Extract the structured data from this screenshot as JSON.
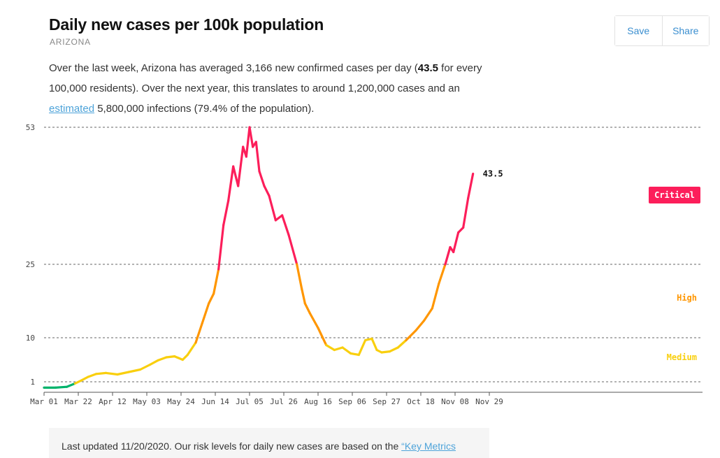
{
  "header": {
    "title": "Daily new cases per 100k population",
    "subtitle": "ARIZONA"
  },
  "summary": {
    "part1": "Over the last week, Arizona has averaged 3,166 new confirmed cases per day (",
    "bold_value": "43.5",
    "part2": " for every 100,000 residents). Over the next year, this translates to around 1,200,000 cases and an ",
    "link_text": "estimated",
    "part3": " 5,800,000 infections (79.4% of the population)."
  },
  "actions": {
    "save_label": "Save",
    "share_label": "Share"
  },
  "footer": {
    "text": "Last updated 11/20/2020. Our risk levels for daily new cases are based on the ",
    "link_text": "“Key Metrics"
  },
  "colors": {
    "low": "#00b36b",
    "medium": "#f9cf0e",
    "high": "#ff9600",
    "critical": "#fc1e5a"
  },
  "chart_data": {
    "type": "line",
    "x_start": "2020-03-01",
    "x_end": "2020-12-09",
    "ylim": [
      0,
      53
    ],
    "y_scale": "piecewise",
    "y_ticks": [
      1,
      10,
      25,
      53
    ],
    "y_tick_labels": [
      "1",
      "10",
      "25",
      "53"
    ],
    "x_ticks": [
      "2020-03-01",
      "2020-03-22",
      "2020-04-12",
      "2020-05-03",
      "2020-05-24",
      "2020-06-14",
      "2020-07-05",
      "2020-07-26",
      "2020-08-16",
      "2020-09-06",
      "2020-09-27",
      "2020-10-18",
      "2020-11-08",
      "2020-11-29"
    ],
    "x_tick_labels": [
      "Mar 01",
      "Mar 22",
      "Apr 12",
      "May 03",
      "May 24",
      "Jun 14",
      "Jul 05",
      "Jul 26",
      "Aug 16",
      "Sep 06",
      "Sep 27",
      "Oct 18",
      "Nov 08",
      "Nov 29"
    ],
    "grid": "dashed horizontal at y ticks",
    "zones": [
      {
        "label": "Critical",
        "min": 25,
        "max": 53,
        "color": "#fc1e5a"
      },
      {
        "label": "High",
        "min": 10,
        "max": 25,
        "color": "#ff9600"
      },
      {
        "label": "Medium",
        "min": 1,
        "max": 10,
        "color": "#f9cf0e"
      },
      {
        "label": "",
        "min": 0,
        "max": 1,
        "color": "#00b36b"
      }
    ],
    "last_value_label": "43.5",
    "last_zone_label": "Critical",
    "series": [
      {
        "x": [
          "2020-03-01",
          "2020-03-08",
          "2020-03-15",
          "2020-03-20",
          "2020-03-24",
          "2020-03-28",
          "2020-04-02",
          "2020-04-08",
          "2020-04-15",
          "2020-04-22",
          "2020-04-29",
          "2020-05-05",
          "2020-05-10",
          "2020-05-15",
          "2020-05-20",
          "2020-05-25",
          "2020-05-28",
          "2020-06-02",
          "2020-06-06",
          "2020-06-10",
          "2020-06-13",
          "2020-06-16",
          "2020-06-19",
          "2020-06-22",
          "2020-06-25",
          "2020-06-28",
          "2020-07-01",
          "2020-07-03",
          "2020-07-05",
          "2020-07-07",
          "2020-07-09",
          "2020-07-11",
          "2020-07-14",
          "2020-07-17",
          "2020-07-21",
          "2020-07-25",
          "2020-07-29",
          "2020-08-03",
          "2020-08-06",
          "2020-08-08",
          "2020-08-11",
          "2020-08-16",
          "2020-08-21",
          "2020-08-26",
          "2020-08-31",
          "2020-09-05",
          "2020-09-10",
          "2020-09-14",
          "2020-09-18",
          "2020-09-21",
          "2020-09-24",
          "2020-09-29",
          "2020-10-04",
          "2020-10-09",
          "2020-10-15",
          "2020-10-20",
          "2020-10-25",
          "2020-10-29",
          "2020-11-02",
          "2020-11-05",
          "2020-11-07",
          "2020-11-10",
          "2020-11-13",
          "2020-11-16",
          "2020-11-19"
        ],
        "values": [
          0.3,
          0.3,
          0.4,
          0.8,
          1.3,
          2.0,
          2.6,
          2.8,
          2.5,
          3.0,
          3.5,
          4.5,
          5.4,
          6.0,
          6.2,
          5.5,
          6.5,
          9.0,
          13.0,
          17.0,
          19.0,
          24.0,
          33.0,
          38.0,
          45.0,
          41.0,
          49.0,
          47.0,
          53.0,
          49.0,
          50.0,
          44.0,
          41.0,
          39.0,
          34.0,
          35.0,
          31.0,
          25.0,
          20.0,
          17.0,
          15.0,
          12.0,
          8.5,
          7.5,
          8.0,
          6.8,
          6.5,
          9.5,
          9.8,
          7.5,
          7.0,
          7.2,
          8.0,
          9.5,
          11.5,
          13.5,
          16.0,
          21.0,
          25.0,
          28.5,
          27.5,
          31.5,
          32.5,
          38.5,
          43.5
        ]
      }
    ]
  }
}
